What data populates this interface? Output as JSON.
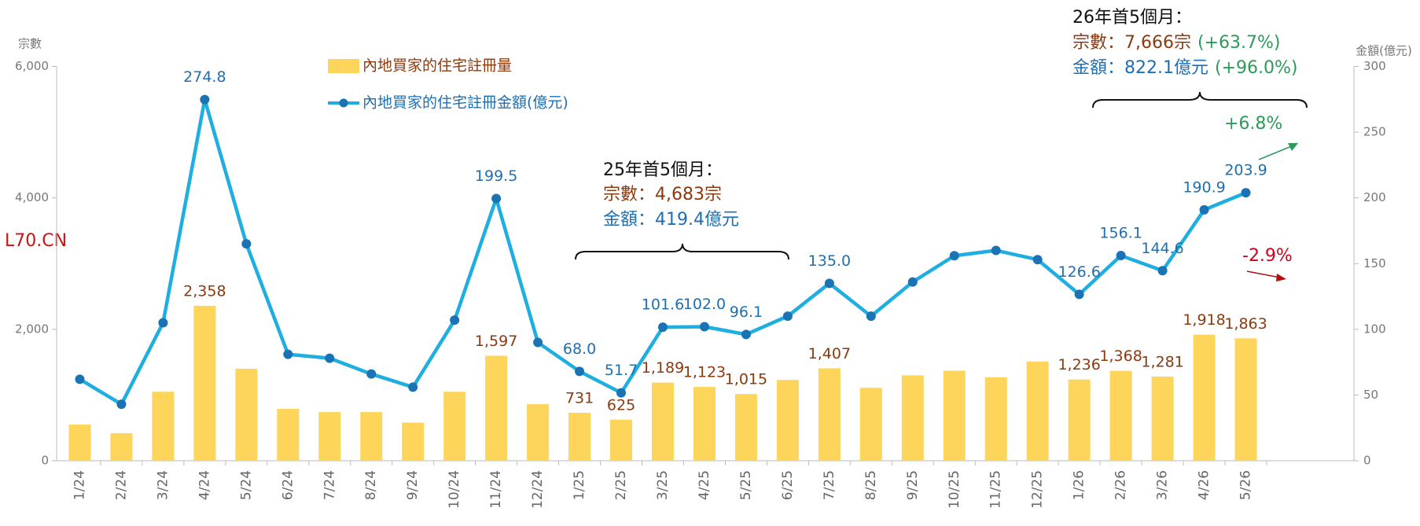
{
  "chart_data": {
    "type": "combo",
    "y_label": "宗數",
    "y2_label": "金額(億元)",
    "categories": [
      "1/24",
      "2/24",
      "3/24",
      "4/24",
      "5/24",
      "6/24",
      "7/24",
      "8/24",
      "9/24",
      "10/24",
      "11/24",
      "12/24",
      "1/25",
      "2/25",
      "3/25",
      "4/25",
      "5/25",
      "6/25",
      "7/25",
      "8/25",
      "9/25",
      "10/25",
      "11/25",
      "12/25",
      "1/26",
      "2/26",
      "3/26",
      "4/26",
      "5/26"
    ],
    "series": [
      {
        "name": "內地買家的住宅註冊量",
        "type": "bar",
        "axis": "y",
        "color": "#fdd55a",
        "values": [
          550,
          420,
          1050,
          2358,
          1400,
          790,
          740,
          740,
          580,
          1050,
          1597,
          860,
          731,
          625,
          1189,
          1123,
          1015,
          1230,
          1407,
          1110,
          1300,
          1370,
          1270,
          1510,
          1236,
          1368,
          1281,
          1918,
          1863
        ],
        "value_labels": [
          null,
          null,
          null,
          "2,358",
          null,
          null,
          null,
          null,
          null,
          null,
          "1,597",
          null,
          "731",
          "625",
          "1,189",
          "1,123",
          "1,015",
          null,
          "1,407",
          null,
          null,
          null,
          null,
          null,
          "1,236",
          "1,368",
          "1,281",
          "1,918",
          "1,863"
        ]
      },
      {
        "name": "內地買家的住宅註冊金額(億元)",
        "type": "line",
        "axis": "y2",
        "color": "#1eaee0",
        "values": [
          62,
          43,
          105,
          274.8,
          165,
          81,
          78,
          66,
          56,
          107,
          199.5,
          90,
          68.0,
          51.7,
          101.6,
          102.0,
          96.1,
          110,
          135.0,
          110,
          136,
          156,
          160,
          153,
          126.6,
          156.1,
          144.6,
          190.9,
          203.9
        ],
        "value_labels": [
          null,
          null,
          null,
          "274.8",
          null,
          null,
          null,
          null,
          null,
          null,
          "199.5",
          null,
          "68.0",
          "51.7",
          "101.6",
          "102.0",
          "96.1",
          null,
          "135.0",
          null,
          null,
          null,
          null,
          null,
          "126.6",
          "156.1",
          "144.6",
          "190.9",
          "203.9"
        ]
      }
    ],
    "ylim": [
      0,
      6000
    ],
    "yticks": [
      0,
      {
        "value": 2000,
        "label": "2,000"
      },
      {
        "value": 4000,
        "label": "4,000"
      },
      {
        "value": 6000,
        "label": "6,000"
      }
    ],
    "y2lim": [
      0,
      300
    ],
    "y2ticks": [
      0,
      50,
      100,
      150,
      200,
      250,
      300
    ],
    "grid": false,
    "annotations": {
      "p25_title": "25年首5個月：",
      "p25_count": "宗數：4,683宗",
      "p25_amount": "金額：419.4億元",
      "p26_title": "26年首5個月：",
      "p26_count": "宗數：7,666宗",
      "p26_count_change": "(+63.7%)",
      "p26_amount": "金額：822.1億元",
      "p26_amount_change": "(+96.0%)",
      "up_change": "+6.8%",
      "down_change": "-2.9%"
    },
    "watermark": "L70.CN"
  }
}
